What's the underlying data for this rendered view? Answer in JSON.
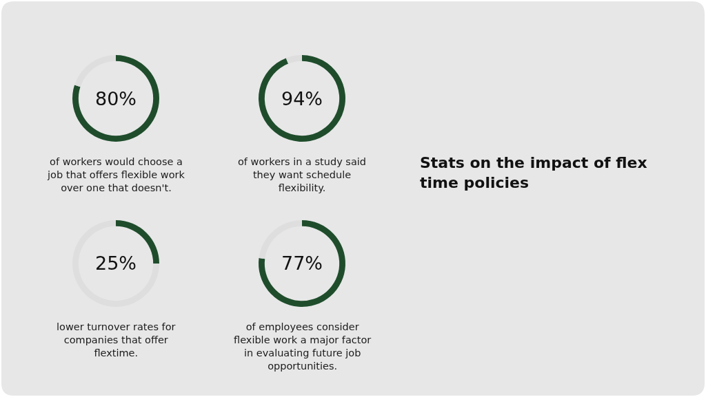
{
  "chart_data": [
    {
      "type": "donut",
      "categories": [
        null,
        null
      ],
      "values": [
        80,
        20
      ],
      "colors": [
        "#1f4d2c",
        "#dedede"
      ],
      "value_labels": [
        "80%",
        null
      ],
      "annotations": [
        "of workers would choose a\njob that offers flexible work\nover one that doesn't."
      ]
    },
    {
      "type": "donut",
      "categories": [
        null,
        null
      ],
      "values": [
        94,
        6
      ],
      "colors": [
        "#1f4d2c",
        "#dedede"
      ],
      "value_labels": [
        "94%",
        null
      ],
      "annotations": [
        "of workers in a study said\nthey want schedule\nflexibility."
      ]
    },
    {
      "type": "donut",
      "categories": [
        null,
        null
      ],
      "values": [
        25,
        75
      ],
      "colors": [
        "#1f4d2c",
        "#dedede"
      ],
      "value_labels": [
        "25%",
        null
      ],
      "annotations": [
        "lower turnover rates for\ncompanies that offer\nflextime."
      ]
    },
    {
      "type": "donut",
      "categories": [
        null,
        null
      ],
      "values": [
        77,
        23
      ],
      "colors": [
        "#1f4d2c",
        "#dedede"
      ],
      "value_labels": [
        "77%",
        null
      ],
      "annotations": [
        "of employees consider\nflexible work a major factor\nin evaluating future job\nopportunities."
      ]
    },
    {
      "type": "other",
      "title": "Stats on the impact of flex\ntime policies"
    }
  ]
}
